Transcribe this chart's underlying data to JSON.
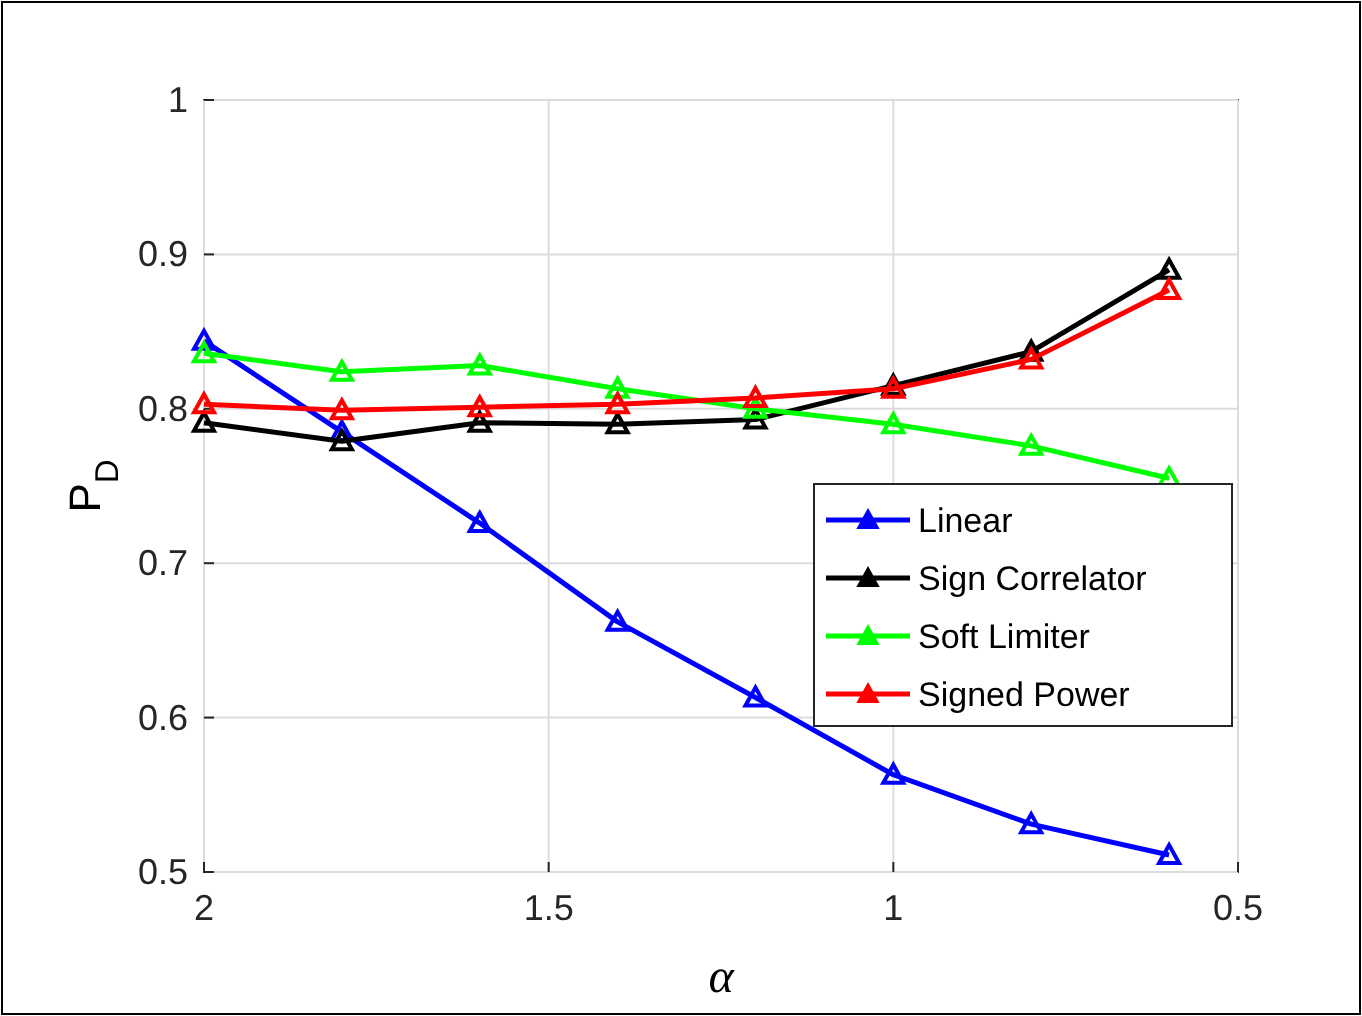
{
  "chart_data": {
    "type": "line",
    "xlabel": "α",
    "ylabel": "P$_{D}$",
    "x": [
      2,
      1.8,
      1.6,
      1.4,
      1.2,
      1,
      0.8,
      0.6
    ],
    "xlim": [
      2,
      0.5
    ],
    "xticks": [
      2,
      1.5,
      1,
      0.5
    ],
    "ylim": [
      0.5,
      1
    ],
    "yticks": [
      0.5,
      0.6,
      0.7,
      0.8,
      0.9,
      1
    ],
    "grid": true,
    "legend": "right",
    "marker": "triangle",
    "line_style": "solid",
    "series": [
      {
        "name": "Linear",
        "color": "#0000ff",
        "values": [
          0.844,
          0.785,
          0.726,
          0.662,
          0.613,
          0.563,
          0.531,
          0.511
        ]
      },
      {
        "name": "Sign Correlator",
        "color": "#000000",
        "values": [
          0.791,
          0.779,
          0.791,
          0.79,
          0.793,
          0.815,
          0.837,
          0.89
        ]
      },
      {
        "name": "Soft Limiter",
        "color": "#00ff00",
        "values": [
          0.836,
          0.824,
          0.828,
          0.813,
          0.8,
          0.79,
          0.776,
          0.755
        ]
      },
      {
        "name": "Signed Power",
        "color": "#ff0000",
        "values": [
          0.803,
          0.799,
          0.801,
          0.803,
          0.807,
          0.813,
          0.832,
          0.877
        ]
      }
    ]
  }
}
